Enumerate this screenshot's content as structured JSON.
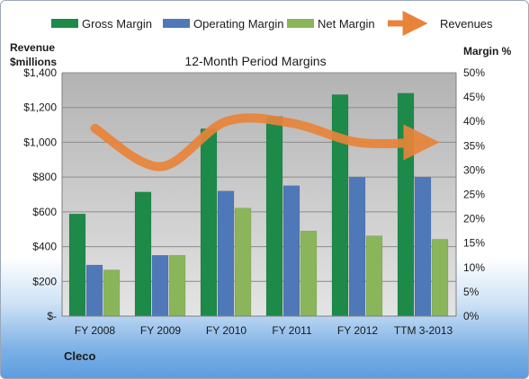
{
  "chart_data": {
    "type": "bar",
    "title": "12-Month Period Margins",
    "categories": [
      "FY 2008",
      "FY 2009",
      "FY 2010",
      "FY 2011",
      "FY 2012",
      "TTM 3-2013"
    ],
    "series": [
      {
        "name": "Gross Margin",
        "axis": "right",
        "color": "#1e8a4a",
        "values": [
          21.0,
          25.5,
          38.5,
          41.0,
          45.5,
          45.8
        ]
      },
      {
        "name": "Operating Margin",
        "axis": "right",
        "color": "#4f78b8",
        "values": [
          10.5,
          12.5,
          25.7,
          26.8,
          28.5,
          28.5
        ]
      },
      {
        "name": "Net Margin",
        "axis": "right",
        "color": "#8ab55a",
        "values": [
          9.5,
          12.5,
          22.2,
          17.5,
          16.5,
          15.8
        ]
      },
      {
        "name": "Revenues",
        "axis": "left",
        "type": "line",
        "color": "#e8843a",
        "values": [
          1080,
          860,
          1120,
          1110,
          1000,
          1000
        ]
      }
    ],
    "y_left": {
      "label_line1": "Revenue",
      "label_line2": "$millions",
      "min": 0,
      "max": 1400,
      "ticks": [
        "$-",
        "$200",
        "$400",
        "$600",
        "$800",
        "$1,000",
        "$1,200",
        "$1,400"
      ]
    },
    "y_right": {
      "label": "Margin %",
      "min": 0,
      "max": 50,
      "ticks": [
        "0%",
        "5%",
        "10%",
        "15%",
        "20%",
        "25%",
        "30%",
        "35%",
        "40%",
        "45%",
        "50%"
      ]
    },
    "grid": true,
    "legend": "top"
  },
  "company": "Cleco"
}
